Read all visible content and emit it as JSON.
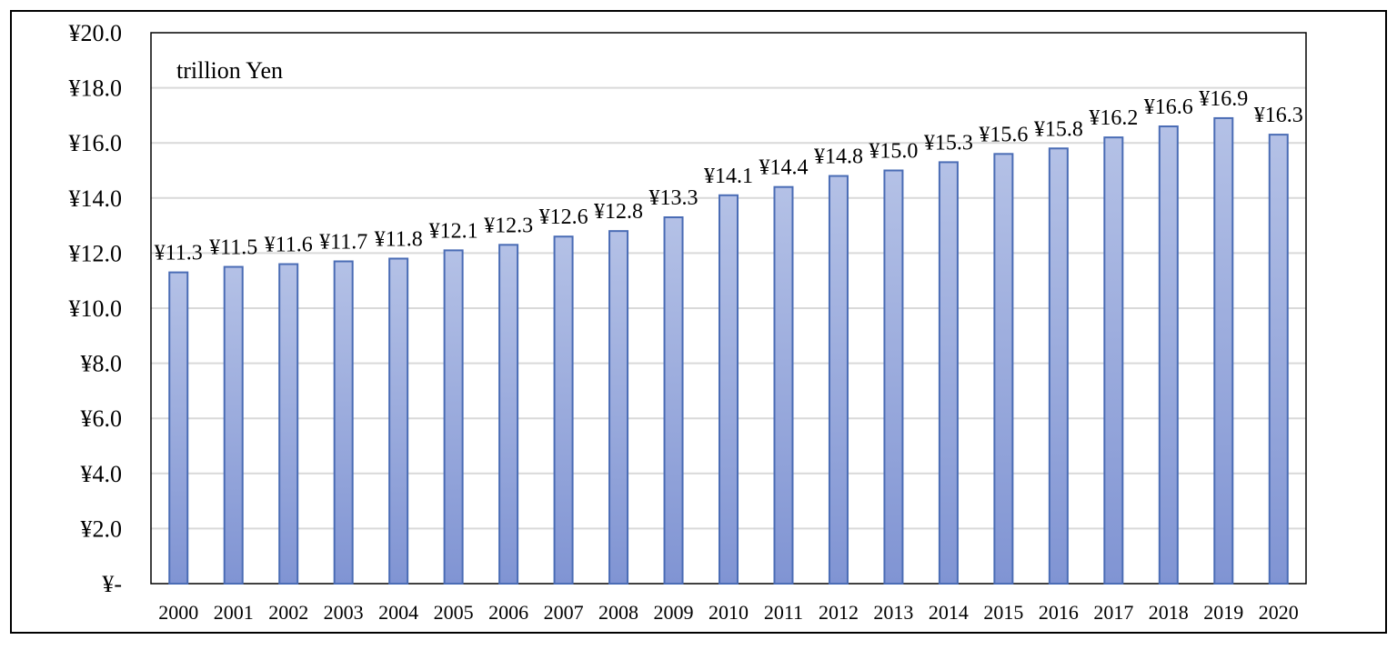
{
  "chart_data": {
    "type": "bar",
    "unit_label": "trillion Yen",
    "categories": [
      "2000",
      "2001",
      "2002",
      "2003",
      "2004",
      "2005",
      "2006",
      "2007",
      "2008",
      "2009",
      "2010",
      "2011",
      "2012",
      "2013",
      "2014",
      "2015",
      "2016",
      "2017",
      "2018",
      "2019",
      "2020"
    ],
    "values": [
      11.3,
      11.5,
      11.6,
      11.7,
      11.8,
      12.1,
      12.3,
      12.6,
      12.8,
      13.3,
      14.1,
      14.4,
      14.8,
      15.0,
      15.3,
      15.6,
      15.8,
      16.2,
      16.6,
      16.9,
      16.3
    ],
    "data_labels": [
      "¥11.3",
      "¥11.5",
      "¥11.6",
      "¥11.7",
      "¥11.8",
      "¥12.1",
      "¥12.3",
      "¥12.6",
      "¥12.8",
      "¥13.3",
      "¥14.1",
      "¥14.4",
      "¥14.8",
      "¥15.0",
      "¥15.3",
      "¥15.6",
      "¥15.8",
      "¥16.2",
      "¥16.6",
      "¥16.9",
      "¥16.3"
    ],
    "ylim": [
      0,
      20
    ],
    "yticks": [
      0,
      2,
      4,
      6,
      8,
      10,
      12,
      14,
      16,
      18,
      20
    ],
    "ytick_labels": [
      "¥-",
      "¥2.0",
      "¥4.0",
      "¥6.0",
      "¥8.0",
      "¥10.0",
      "¥12.0",
      "¥14.0",
      "¥16.0",
      "¥18.0",
      "¥20.0"
    ],
    "grid": true,
    "colors": {
      "bar_fill_top": "#b4c1e6",
      "bar_fill_bottom": "#8094d3",
      "bar_stroke": "#4a6cb5",
      "grid": "#d9d9d9",
      "frame": "#000000"
    }
  }
}
